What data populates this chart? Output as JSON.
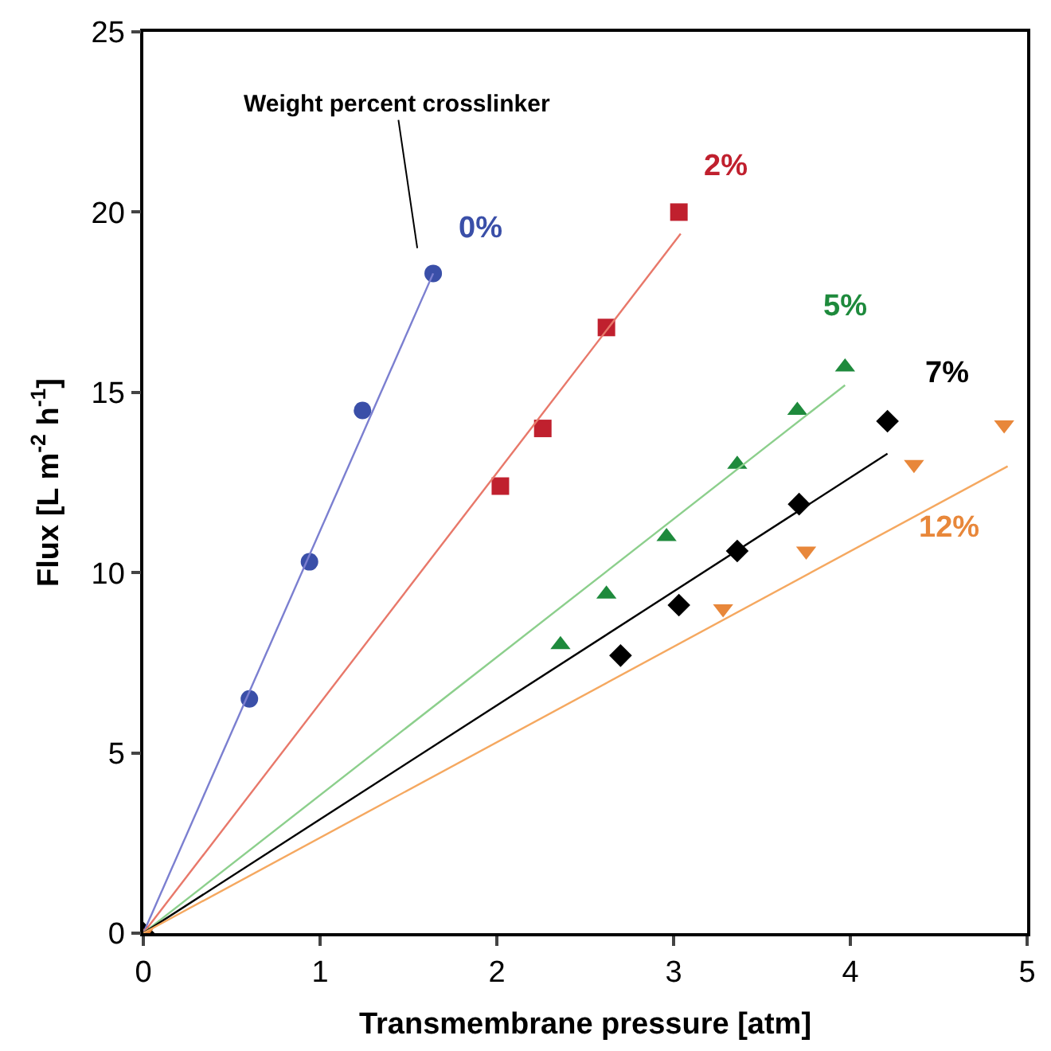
{
  "chart_data": {
    "type": "scatter",
    "xlabel": "Transmembrane pressure [atm]",
    "ylabel": "Flux [L m$^{-2}$ h$^{-1}$]",
    "xlim": [
      0,
      5
    ],
    "xticks": [
      0,
      1,
      2,
      3,
      4,
      5
    ],
    "ylim": [
      0,
      25
    ],
    "yticks": [
      0,
      5,
      10,
      15,
      20,
      25
    ],
    "legend": false,
    "series": [
      {
        "name": "0%",
        "color": "#3a4fa8",
        "marker": "circle",
        "x": [
          0.6,
          0.94,
          1.24,
          1.64
        ],
        "values": [
          6.5,
          10.3,
          14.5,
          18.3
        ]
      },
      {
        "name": "2%",
        "color": "#c0202e",
        "marker": "square",
        "x": [
          2.02,
          2.26,
          2.62,
          3.03
        ],
        "values": [
          12.4,
          14.0,
          16.8,
          20.0
        ]
      },
      {
        "name": "5%",
        "color": "#1e8a3c",
        "marker": "triangle",
        "x": [
          2.36,
          2.62,
          2.96,
          3.36,
          3.7,
          3.97
        ],
        "values": [
          8.0,
          9.4,
          11.0,
          13.0,
          14.5,
          15.7
        ]
      },
      {
        "name": "7%",
        "color": "#000000",
        "marker": "diamond",
        "x": [
          0,
          2.7,
          3.03,
          3.36,
          3.71,
          4.21
        ],
        "values": [
          0,
          7.7,
          9.1,
          10.6,
          11.9,
          14.2
        ]
      },
      {
        "name": "12%",
        "color": "#e8873a",
        "marker": "triangle-down",
        "x": [
          0,
          3.28,
          3.75,
          4.36,
          4.87
        ],
        "values": [
          0,
          9.0,
          10.6,
          13.0,
          14.1
        ]
      },
      {
        "type": "line",
        "color": "#7b7fd0",
        "x": [
          0,
          1.64
        ],
        "values": [
          0,
          18.3
        ]
      },
      {
        "type": "line",
        "color": "#e8786a",
        "x": [
          0,
          3.04
        ],
        "values": [
          0,
          19.4
        ]
      },
      {
        "type": "line",
        "color": "#8ccf8c",
        "x": [
          0,
          3.97
        ],
        "values": [
          0,
          15.2
        ]
      },
      {
        "type": "line",
        "color": "#000000",
        "x": [
          0,
          4.21
        ],
        "values": [
          0,
          13.3
        ]
      },
      {
        "type": "line",
        "color": "#f5a860",
        "x": [
          0,
          4.89
        ],
        "values": [
          0,
          12.95
        ]
      }
    ],
    "annotations": [
      "Weight percent crosslinker"
    ]
  }
}
